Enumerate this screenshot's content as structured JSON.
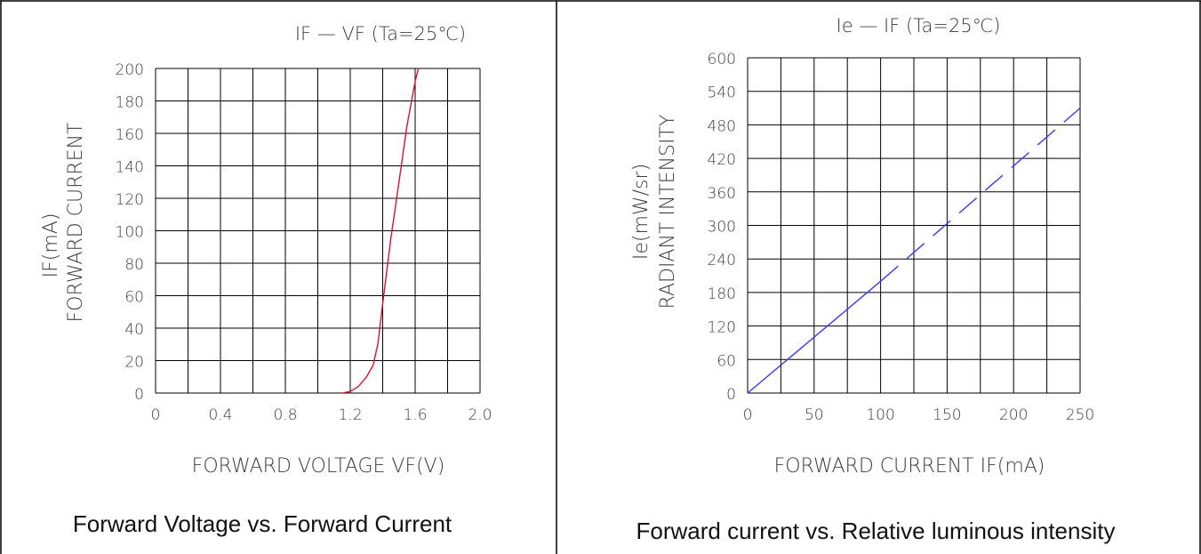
{
  "panels": [
    {
      "caption": "Forward Voltage vs. Forward Current",
      "chart_data": {
        "type": "line",
        "title": "IF — VF (Ta=25℃)",
        "xlabel": "FORWARD VOLTAGE VF(V)",
        "ylabel": "IF(mA)",
        "ylabel2": "FORWARD CURRENT",
        "xlim": [
          0,
          2.0
        ],
        "ylim": [
          0,
          200
        ],
        "x_ticks": [
          "0",
          "0.4",
          "0.8",
          "1.2",
          "1.6",
          "2.0"
        ],
        "y_ticks": [
          "0",
          "20",
          "40",
          "60",
          "80",
          "100",
          "120",
          "140",
          "160",
          "180",
          "200"
        ],
        "grid": true,
        "series": [
          {
            "color": "#e0102a",
            "dashed": false,
            "x": [
              1.15,
              1.2,
              1.25,
              1.3,
              1.34,
              1.37,
              1.4,
              1.45,
              1.5,
              1.55,
              1.6,
              1.62
            ],
            "y": [
              0,
              1,
              4,
              10,
              17,
              30,
              55,
              95,
              130,
              165,
              192,
              200
            ]
          }
        ]
      }
    },
    {
      "caption": "Forward current vs. Relative luminous intensity",
      "chart_data": {
        "type": "line",
        "title": "Ie — IF (Ta=25℃)",
        "xlabel": "FORWARD CURRENT IF(mA)",
        "ylabel": "Ie(mW/sr)",
        "ylabel2": "RADIANT INTENSITY",
        "xlim": [
          0,
          250
        ],
        "ylim": [
          0,
          600
        ],
        "x_ticks": [
          "0",
          "50",
          "100",
          "150",
          "200",
          "250"
        ],
        "y_ticks": [
          "0",
          "60",
          "120",
          "180",
          "240",
          "300",
          "360",
          "420",
          "480",
          "540",
          "600"
        ],
        "grid": true,
        "series": [
          {
            "color": "#3a3aee",
            "dashed": false,
            "x": [
              0,
              100
            ],
            "y": [
              0,
              200
            ]
          },
          {
            "color": "#3a3aee",
            "dashed": true,
            "x": [
              100,
              250
            ],
            "y": [
              200,
              510
            ]
          }
        ]
      }
    }
  ]
}
